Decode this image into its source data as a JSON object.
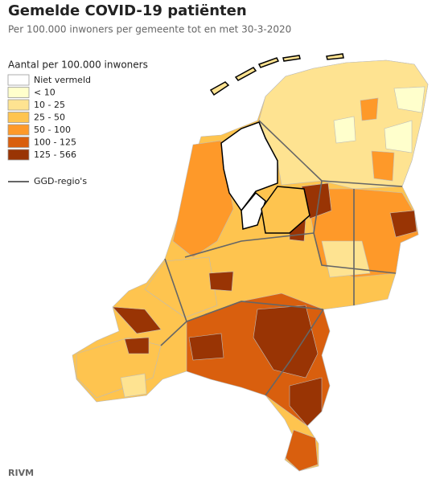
{
  "header": {
    "title": "Gemelde COVID-19 patiënten",
    "subtitle": "Per 100.000 inwoners per gemeente tot en met 30-3-2020"
  },
  "legend": {
    "title": "Aantal per 100.000 inwoners",
    "items": [
      {
        "label": "Niet vermeld",
        "color": "#ffffff"
      },
      {
        "label": "< 10",
        "color": "#ffffcc"
      },
      {
        "label": "10 - 25",
        "color": "#fee391"
      },
      {
        "label": "25 - 50",
        "color": "#fec44f"
      },
      {
        "label": "50 - 100",
        "color": "#fe9929"
      },
      {
        "label": "100 - 125",
        "color": "#d95f0e"
      },
      {
        "label": "125 - 566",
        "color": "#993404"
      }
    ],
    "boundary_label": "GGD-regio's"
  },
  "source": "RIVM"
}
